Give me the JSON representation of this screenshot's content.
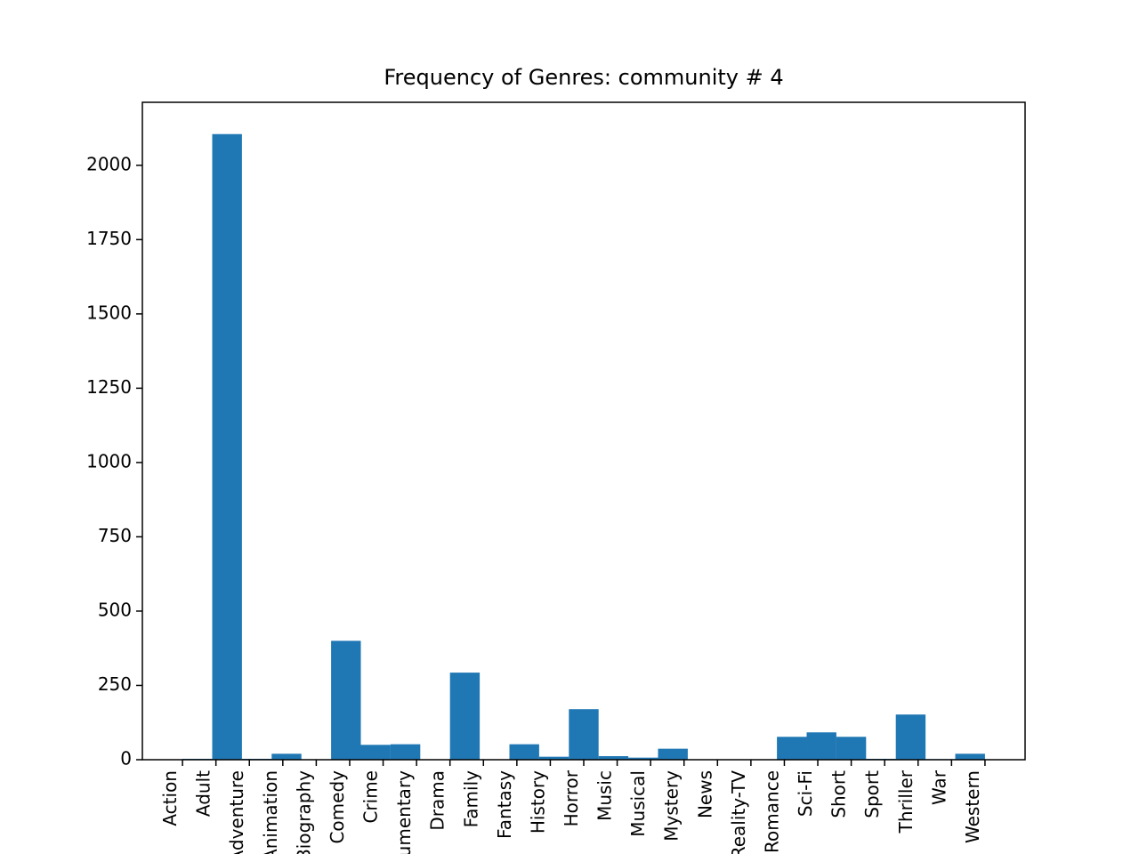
{
  "chart_data": {
    "type": "histogram",
    "title": "Frequency of Genres: community # 4",
    "color": "#1f77b4",
    "bins": [
      0,
      0.8889,
      1.7778,
      2.6667,
      3.5556,
      4.4444,
      5.3333,
      6.2222,
      7.1111,
      8,
      8.8889,
      9.7778,
      10.6667,
      11.5556,
      12.4444,
      13.3333,
      14.2222,
      15.1111,
      16,
      16.8889,
      17.7778,
      18.6667,
      19.5556,
      20.4444,
      21.3333,
      22.2222,
      23.1111,
      24
    ],
    "values": [
      3,
      2105,
      3,
      20,
      0,
      400,
      50,
      52,
      0,
      293,
      0,
      52,
      10,
      170,
      12,
      7,
      37,
      0,
      0,
      0,
      77,
      92,
      77,
      3,
      152,
      2,
      20
    ],
    "xlim": [
      -1.2,
      25.2
    ],
    "xticks": [
      {
        "value": 0,
        "label": "Action"
      },
      {
        "value": 1,
        "label": "Adult"
      },
      {
        "value": 2,
        "label": "Adventure"
      },
      {
        "value": 3,
        "label": "Animation"
      },
      {
        "value": 4,
        "label": "Biography"
      },
      {
        "value": 5,
        "label": "Comedy"
      },
      {
        "value": 6,
        "label": "Crime"
      },
      {
        "value": 7,
        "label": "Documentary"
      },
      {
        "value": 8,
        "label": "Drama"
      },
      {
        "value": 9,
        "label": "Family"
      },
      {
        "value": 10,
        "label": "Fantasy"
      },
      {
        "value": 11,
        "label": "History"
      },
      {
        "value": 12,
        "label": "Horror"
      },
      {
        "value": 13,
        "label": "Music"
      },
      {
        "value": 14,
        "label": "Musical"
      },
      {
        "value": 15,
        "label": "Mystery"
      },
      {
        "value": 16,
        "label": "News"
      },
      {
        "value": 17,
        "label": "Reality-TV"
      },
      {
        "value": 18,
        "label": "Romance"
      },
      {
        "value": 19,
        "label": "Sci-Fi"
      },
      {
        "value": 20,
        "label": "Short"
      },
      {
        "value": 21,
        "label": "Sport"
      },
      {
        "value": 22,
        "label": "Thriller"
      },
      {
        "value": 23,
        "label": "War"
      },
      {
        "value": 24,
        "label": "Western"
      }
    ],
    "ylim": [
      0,
      2212
    ],
    "yticks": [
      0,
      250,
      500,
      750,
      1000,
      1250,
      1500,
      1750,
      2000
    ]
  }
}
